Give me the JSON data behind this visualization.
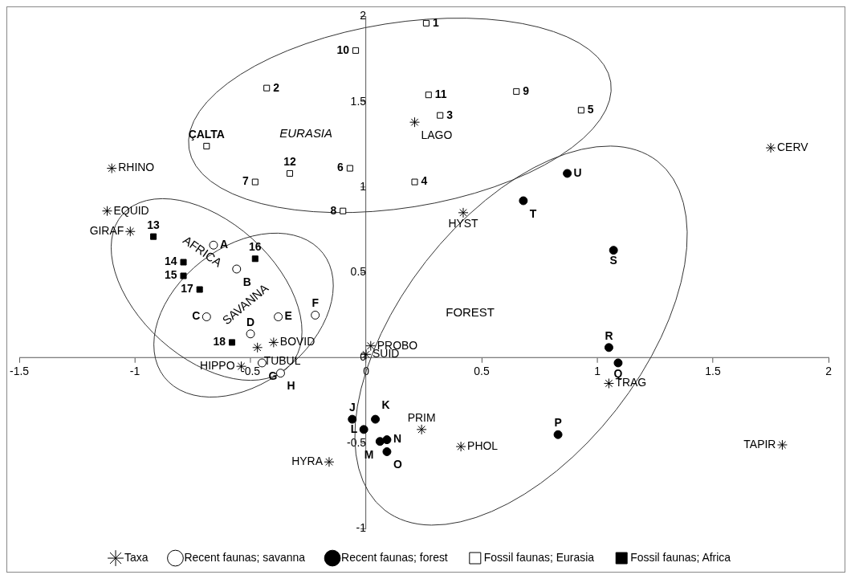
{
  "chart_data": {
    "type": "scatter",
    "xlim": [
      -1.5,
      2
    ],
    "xticks": [
      -1.5,
      -1,
      -0.5,
      0,
      0.5,
      1,
      1.5,
      2
    ],
    "ylim": [
      -1,
      2
    ],
    "yticks": [
      -1,
      -0.5,
      0,
      0.5,
      1,
      1.5,
      2
    ],
    "grid": false,
    "legend": "bottom",
    "annotations": [
      "EURASIA",
      "AFRICA",
      "SAVANNA",
      "FOREST",
      {
        "text": "RHINO",
        "x": -1.1,
        "y": 1.11
      },
      {
        "text": "EQUID",
        "x": -1.12,
        "y": 0.86
      },
      {
        "text": "GIRAF",
        "x": -1.02,
        "y": 0.74
      },
      {
        "text": "LAGO",
        "x": 0.21,
        "y": 1.38
      },
      {
        "text": "CERV",
        "x": 1.75,
        "y": 1.23
      },
      {
        "text": "HYST",
        "x": 0.42,
        "y": 0.85
      },
      {
        "text": "BOVID",
        "x": -0.4,
        "y": 0.09
      },
      {
        "text": "TUBUL",
        "x": -0.47,
        "y": 0.06
      },
      {
        "text": "HIPPO",
        "x": -0.54,
        "y": -0.05
      },
      {
        "text": "HYRA",
        "x": -0.16,
        "y": -0.61
      },
      {
        "text": "PROBO",
        "x": 0.02,
        "y": 0.07
      },
      {
        "text": "SUID",
        "x": 0.0,
        "y": 0.02
      },
      {
        "text": "TRAG",
        "x": 1.05,
        "y": -0.15
      },
      {
        "text": "PRIM",
        "x": 0.24,
        "y": -0.42
      },
      {
        "text": "PHOL",
        "x": 0.41,
        "y": -0.52
      },
      {
        "text": "TAPIR",
        "x": 1.8,
        "y": -0.51
      },
      {
        "text": "A",
        "x": -0.66,
        "y": 0.66
      },
      {
        "text": "B",
        "x": -0.56,
        "y": 0.52
      },
      {
        "text": "C",
        "x": -0.69,
        "y": 0.24
      },
      {
        "text": "D",
        "x": -0.5,
        "y": 0.14
      },
      {
        "text": "E",
        "x": -0.38,
        "y": 0.24
      },
      {
        "text": "F",
        "x": -0.22,
        "y": 0.25
      },
      {
        "text": "G",
        "x": -0.45,
        "y": -0.03
      },
      {
        "text": "H",
        "x": -0.37,
        "y": -0.09
      },
      {
        "text": "U",
        "x": 0.87,
        "y": 1.08
      },
      {
        "text": "T",
        "x": 0.68,
        "y": 0.92
      },
      {
        "text": "S",
        "x": 1.07,
        "y": 0.63
      },
      {
        "text": "R",
        "x": 1.05,
        "y": 0.06
      },
      {
        "text": "Q",
        "x": 1.09,
        "y": -0.03
      },
      {
        "text": "P",
        "x": 0.83,
        "y": -0.45
      },
      {
        "text": "J",
        "x": -0.06,
        "y": -0.36
      },
      {
        "text": "K",
        "x": 0.04,
        "y": -0.36
      },
      {
        "text": "L",
        "x": -0.01,
        "y": -0.42
      },
      {
        "text": "N",
        "x": 0.09,
        "y": -0.48
      },
      {
        "text": "M",
        "x": 0.06,
        "y": -0.49
      },
      {
        "text": "O",
        "x": 0.09,
        "y": -0.55
      },
      {
        "text": "1",
        "x": 0.26,
        "y": 1.96
      },
      {
        "text": "10",
        "x": -0.045,
        "y": 1.8
      },
      {
        "text": "2",
        "x": -0.43,
        "y": 1.58
      },
      {
        "text": "11",
        "x": 0.27,
        "y": 1.54
      },
      {
        "text": "9",
        "x": 0.65,
        "y": 1.56
      },
      {
        "text": "3",
        "x": 0.32,
        "y": 1.42
      },
      {
        "text": "5",
        "x": 0.93,
        "y": 1.45
      },
      {
        "text": "ÇALTA",
        "x": -0.69,
        "y": 1.24
      },
      {
        "text": "12",
        "x": -0.33,
        "y": 1.08
      },
      {
        "text": "7",
        "x": -0.48,
        "y": 1.03
      },
      {
        "text": "6",
        "x": -0.07,
        "y": 1.11
      },
      {
        "text": "4",
        "x": 0.21,
        "y": 1.03
      },
      {
        "text": "8",
        "x": -0.1,
        "y": 0.86
      },
      {
        "text": "13",
        "x": -0.92,
        "y": 0.71
      },
      {
        "text": "14",
        "x": -0.79,
        "y": 0.56
      },
      {
        "text": "15",
        "x": -0.79,
        "y": 0.48
      },
      {
        "text": "16",
        "x": -0.48,
        "y": 0.58
      },
      {
        "text": "17",
        "x": -0.72,
        "y": 0.4
      },
      {
        "text": "18",
        "x": -0.58,
        "y": 0.09
      }
    ],
    "series": [
      {
        "name": "Taxa",
        "color": "#000000",
        "marker": "cross",
        "x": [
          -1.1,
          -1.12,
          -1.02,
          0.21,
          1.75,
          0.42,
          -0.4,
          -0.47,
          -0.54,
          -0.16,
          0.02,
          0.0,
          1.05,
          0.24,
          0.41,
          1.8
        ],
        "values": [
          1.11,
          0.86,
          0.74,
          1.38,
          1.23,
          0.85,
          0.09,
          0.06,
          -0.05,
          -0.61,
          0.07,
          0.02,
          -0.15,
          -0.42,
          -0.52,
          -0.51
        ]
      },
      {
        "name": "Recent faunas; savanna",
        "color": "#000000",
        "marker": "circle",
        "x": [
          -0.66,
          -0.56,
          -0.69,
          -0.5,
          -0.38,
          -0.22,
          -0.45,
          -0.37
        ],
        "values": [
          0.66,
          0.52,
          0.24,
          0.14,
          0.24,
          0.25,
          -0.03,
          -0.09
        ]
      },
      {
        "name": "Recent faunas; forest",
        "color": "#000000",
        "marker": "circle",
        "x": [
          0.87,
          0.68,
          1.07,
          1.05,
          1.09,
          0.83,
          -0.06,
          0.04,
          -0.01,
          0.09,
          0.06,
          0.09
        ],
        "values": [
          1.08,
          0.92,
          0.63,
          0.06,
          -0.03,
          -0.45,
          -0.36,
          -0.36,
          -0.42,
          -0.48,
          -0.49,
          -0.55
        ]
      },
      {
        "name": "Fossil faunas; Eurasia",
        "color": "#000000",
        "marker": "square",
        "x": [
          0.26,
          -0.045,
          -0.43,
          0.27,
          0.65,
          0.32,
          0.93,
          -0.69,
          -0.33,
          -0.48,
          -0.07,
          0.21,
          -0.1
        ],
        "values": [
          1.96,
          1.8,
          1.58,
          1.54,
          1.56,
          1.42,
          1.45,
          1.24,
          1.08,
          1.03,
          1.11,
          1.03,
          0.86
        ]
      },
      {
        "name": "Fossil faunas; Africa",
        "color": "#000000",
        "marker": "square",
        "x": [
          -0.92,
          -0.79,
          -0.79,
          -0.48,
          -0.72,
          -0.58
        ],
        "values": [
          0.71,
          0.56,
          0.48,
          0.58,
          0.4,
          0.09
        ]
      }
    ]
  }
}
